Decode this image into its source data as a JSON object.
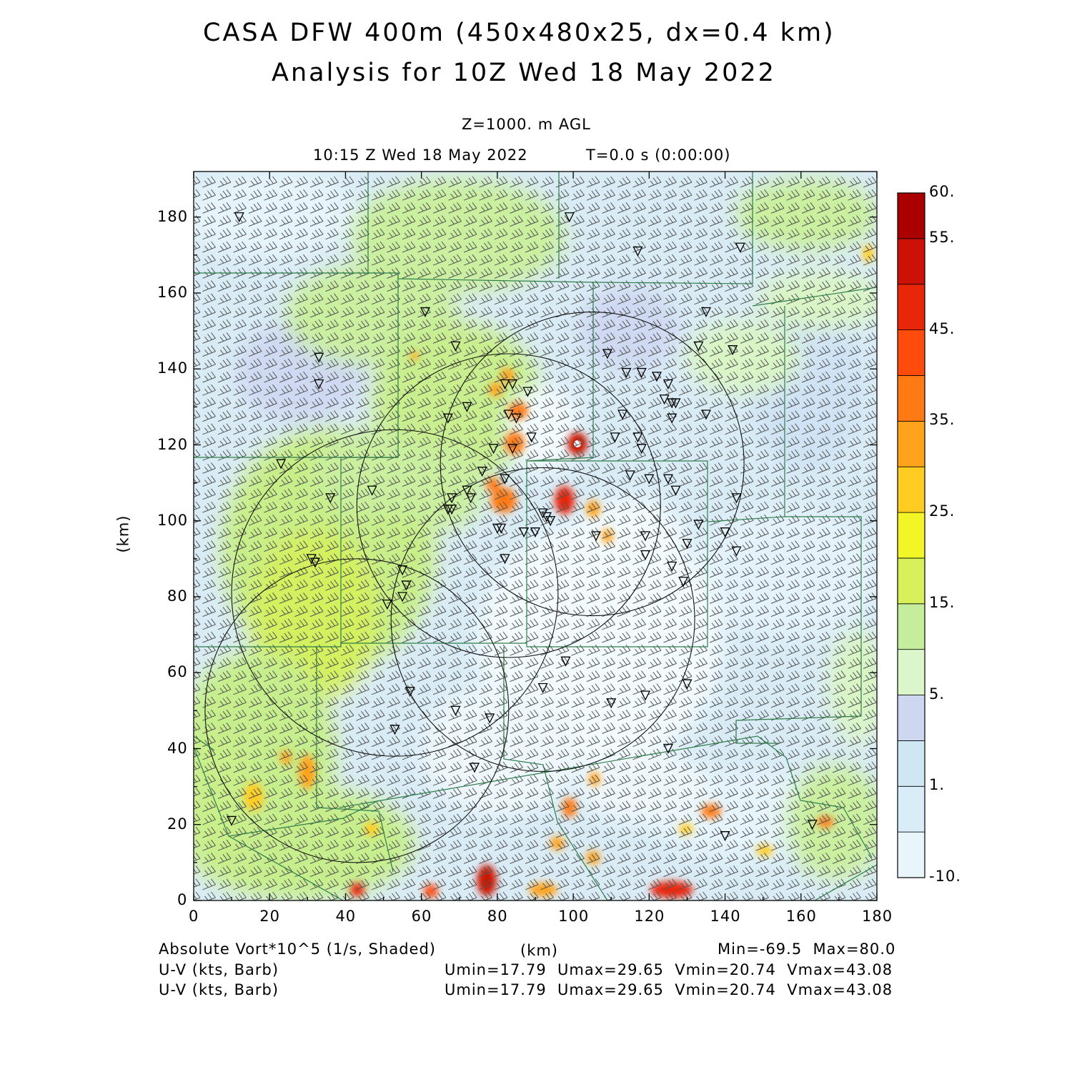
{
  "header": {
    "title_line1": "CASA DFW 400m (450x480x25, dx=0.4 km)",
    "title_line2": "Analysis for 10Z Wed 18 May 2022",
    "level": "Z=1000. m AGL",
    "valid_time": "10:15 Z Wed 18 May 2022",
    "forecast_time": "T=0.0 s (0:00:00)"
  },
  "axes": {
    "x_unit": "(km)",
    "y_unit": "(km)",
    "x_ticks": [
      "0",
      "20",
      "40",
      "60",
      "80",
      "100",
      "120",
      "140",
      "160",
      "180"
    ],
    "y_ticks": [
      "0",
      "20",
      "40",
      "60",
      "80",
      "100",
      "120",
      "140",
      "160",
      "180"
    ]
  },
  "colorbar": {
    "labels": [
      "60.",
      "55.",
      "45.",
      "35.",
      "25.",
      "15.",
      "5.",
      "1.",
      "-10."
    ],
    "colors": [
      "#e8f6fb",
      "#d8edf7",
      "#cfe6f3",
      "#cdd7f0",
      "#dcf6cc",
      "#c4ee9c",
      "#d8f05a",
      "#f2f526",
      "#ffcc22",
      "#ffa31c",
      "#ff7a12",
      "#ff4c0c",
      "#e8260a",
      "#cc1206",
      "#aa0000"
    ]
  },
  "footer": {
    "field_label": "Absolute Vort*10^5 (1/s, Shaded)",
    "x_axis_unit": "(km)",
    "minmax": "Min=-69.5  Max=80.0",
    "barb_label_1": "U-V (kts, Barb)",
    "barb_label_2": "U-V (kts, Barb)",
    "uv_stats_1": "Umin=17.79  Umax=29.65  Vmin=20.74  Vmax=43.08",
    "uv_stats_2": "Umin=17.79  Umax=29.65  Vmin=20.74  Vmax=43.08"
  },
  "map_data": {
    "x_range_km": [
      0,
      180
    ],
    "y_range_km": [
      0,
      192
    ],
    "radar_rings": [
      {
        "cx": 105,
        "cy": 115,
        "r": 40
      },
      {
        "cx": 83,
        "cy": 104,
        "r": 40
      },
      {
        "cx": 92,
        "cy": 74,
        "r": 40
      },
      {
        "cx": 53,
        "cy": 81,
        "r": 43
      },
      {
        "cx": 43,
        "cy": 50,
        "r": 40
      }
    ],
    "vorticity_maxima": [
      {
        "x": 101,
        "y": 120,
        "level": 60
      },
      {
        "x": 98,
        "y": 106,
        "level": 50
      },
      {
        "x": 78,
        "y": 5,
        "level": 50
      },
      {
        "x": 125,
        "y": 2,
        "level": 45
      },
      {
        "x": 83,
        "y": 132,
        "level": 35
      }
    ],
    "stations": [
      [
        12,
        180
      ],
      [
        99,
        180
      ],
      [
        117,
        171
      ],
      [
        144,
        172
      ],
      [
        61,
        155
      ],
      [
        135,
        155
      ],
      [
        133,
        146
      ],
      [
        142,
        145
      ],
      [
        33,
        143
      ],
      [
        33,
        136
      ],
      [
        69,
        146
      ],
      [
        82,
        136
      ],
      [
        84,
        136
      ],
      [
        88,
        134
      ],
      [
        109,
        144
      ],
      [
        114,
        139
      ],
      [
        118,
        139
      ],
      [
        122,
        138
      ],
      [
        125,
        136
      ],
      [
        124,
        132
      ],
      [
        126,
        131
      ],
      [
        127,
        131
      ],
      [
        113,
        128
      ],
      [
        126,
        127
      ],
      [
        135,
        128
      ],
      [
        67,
        127
      ],
      [
        83,
        128
      ],
      [
        85,
        127
      ],
      [
        72,
        130
      ],
      [
        89,
        122
      ],
      [
        117,
        122
      ],
      [
        111,
        122
      ],
      [
        118,
        119
      ],
      [
        79,
        119
      ],
      [
        84,
        119
      ],
      [
        23,
        115
      ],
      [
        76,
        113
      ],
      [
        82,
        111
      ],
      [
        120,
        111
      ],
      [
        125,
        111
      ],
      [
        115,
        112
      ],
      [
        127,
        108
      ],
      [
        72,
        108
      ],
      [
        36,
        106
      ],
      [
        47,
        108
      ],
      [
        68,
        106
      ],
      [
        73,
        106
      ],
      [
        143,
        106
      ],
      [
        67,
        103
      ],
      [
        68,
        103
      ],
      [
        92,
        102
      ],
      [
        93,
        101
      ],
      [
        94,
        100
      ],
      [
        133,
        99
      ],
      [
        80,
        98
      ],
      [
        81,
        98
      ],
      [
        87,
        97
      ],
      [
        90,
        97
      ],
      [
        106,
        96
      ],
      [
        119,
        96
      ],
      [
        119,
        91
      ],
      [
        130,
        94
      ],
      [
        140,
        97
      ],
      [
        143,
        92
      ],
      [
        31,
        90
      ],
      [
        32,
        89
      ],
      [
        82,
        90
      ],
      [
        126,
        88
      ],
      [
        129,
        84
      ],
      [
        55,
        87
      ],
      [
        56,
        83
      ],
      [
        55,
        80
      ],
      [
        51,
        78
      ],
      [
        98,
        63
      ],
      [
        130,
        57
      ],
      [
        92,
        56
      ],
      [
        57,
        55
      ],
      [
        119,
        54
      ],
      [
        110,
        52
      ],
      [
        69,
        50
      ],
      [
        78,
        48
      ],
      [
        53,
        45
      ],
      [
        125,
        40
      ],
      [
        74,
        35
      ],
      [
        10,
        21
      ],
      [
        140,
        17
      ],
      [
        163,
        20
      ]
    ]
  }
}
